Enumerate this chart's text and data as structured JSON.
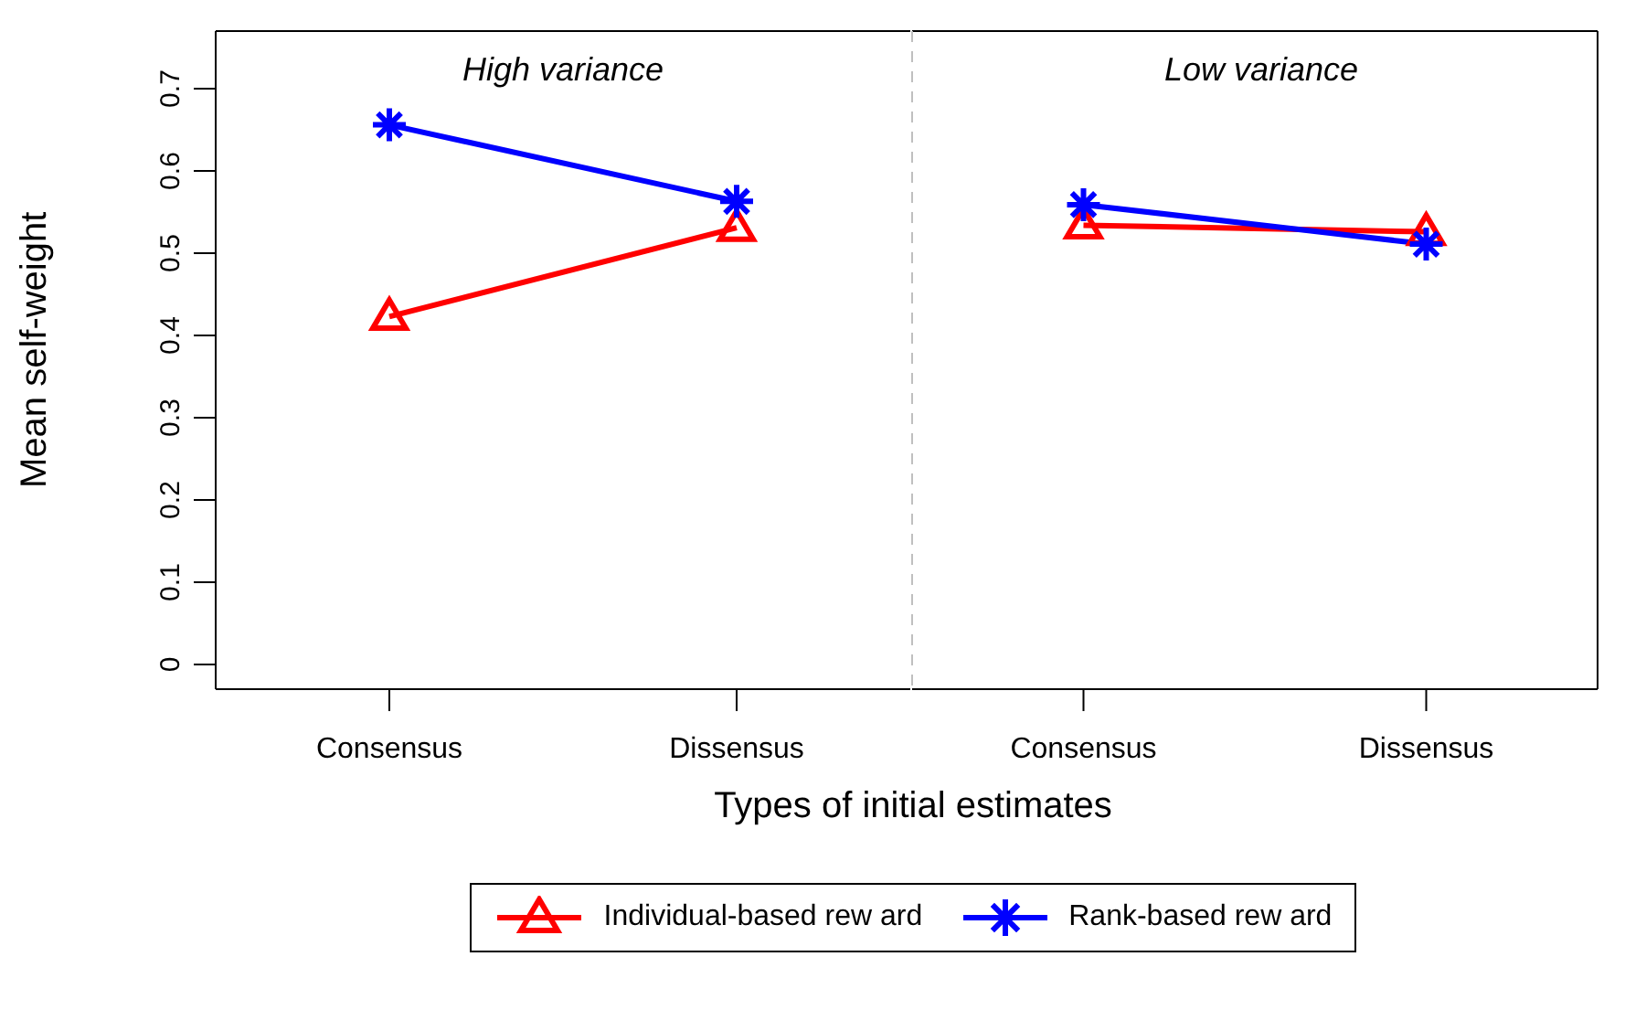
{
  "chart_data": [
    {
      "type": "line",
      "title": "High variance",
      "xlabel": "Types of initial estimates",
      "ylabel": "Mean self-weight",
      "categories": [
        "Consensus",
        "Dissensus"
      ],
      "series": [
        {
          "name": "Individual-based rew ard",
          "color": "#ff0000",
          "marker": "triangle",
          "values": [
            0.423,
            0.531
          ]
        },
        {
          "name": "Rank-based rew ard",
          "color": "#0000ff",
          "marker": "cross",
          "values": [
            0.656,
            0.563
          ]
        }
      ],
      "ylim": [
        -0.03,
        0.77
      ],
      "yticks": [
        0,
        0.1,
        0.2,
        0.3,
        0.4,
        0.5,
        0.6,
        0.7
      ],
      "grid": false,
      "legend": "bottom"
    },
    {
      "type": "line",
      "title": "Low variance",
      "categories": [
        "Consensus",
        "Dissensus"
      ],
      "series": [
        {
          "color": "#ff0000",
          "marker": "triangle",
          "values": [
            0.534,
            0.526
          ]
        },
        {
          "color": "#0000ff",
          "marker": "cross",
          "values": [
            0.559,
            0.511
          ]
        }
      ],
      "ylim": [
        -0.03,
        0.77
      ],
      "yticks": [
        0,
        0.1,
        0.2,
        0.3,
        0.4,
        0.5,
        0.6,
        0.7
      ],
      "tick_labels": "x",
      "grid": false
    }
  ]
}
